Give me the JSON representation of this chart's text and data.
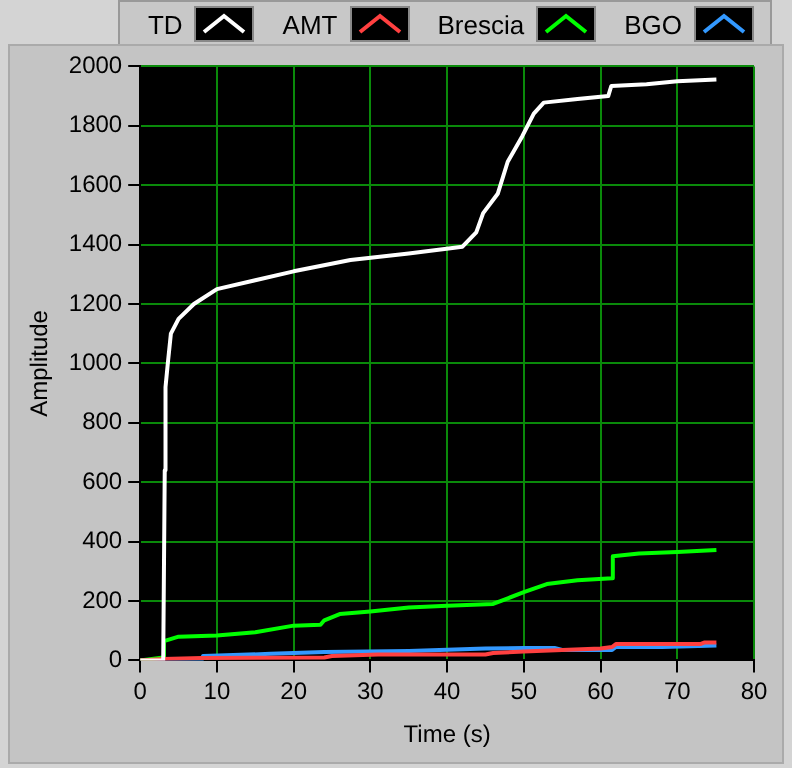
{
  "chart_data": {
    "type": "line",
    "xlabel": "Time (s)",
    "ylabel": "Amplitude",
    "xlim": [
      0,
      80
    ],
    "xticks": [
      0,
      10,
      20,
      30,
      40,
      50,
      60,
      70,
      80
    ],
    "ylim": [
      0,
      2000
    ],
    "yticks": [
      0,
      200,
      400,
      600,
      800,
      1000,
      1200,
      1400,
      1600,
      1800,
      2000
    ],
    "grid": true,
    "legend": "top right",
    "marker": "none",
    "line_style": "solid",
    "series": [
      {
        "name": "TD",
        "color": "#ffffff",
        "x": [
          0,
          3,
          3.2,
          3.3,
          3.6,
          4,
          5,
          7,
          10,
          15,
          20,
          27.4,
          35,
          42,
          43.8,
          44.7,
          46.6,
          47.9,
          49.8,
          51.3,
          52.6,
          57,
          61,
          61.4,
          66,
          70,
          75.1
        ],
        "values": [
          0,
          0,
          640,
          920,
          1000,
          1100,
          1150,
          1200,
          1250,
          1280,
          1310,
          1348,
          1370,
          1393,
          1441,
          1506,
          1571,
          1679,
          1765,
          1841,
          1878,
          1890,
          1900,
          1934,
          1940,
          1950,
          1956
        ]
      },
      {
        "name": "AMT",
        "color": "#ff4040",
        "x": [
          0,
          3,
          8,
          24,
          25,
          31,
          45,
          46,
          50,
          55,
          60,
          61.5,
          62,
          70,
          73,
          73.5,
          75.1
        ],
        "values": [
          0,
          5,
          8,
          10,
          15,
          20,
          20,
          25,
          30,
          35,
          40,
          45,
          55,
          55,
          55,
          60,
          60
        ]
      },
      {
        "name": "Brescia",
        "color": "#00ff00",
        "x": [
          0,
          3,
          3.1,
          5,
          10,
          15,
          20,
          23.5,
          24,
          26,
          30,
          35,
          40,
          46,
          48,
          50,
          53,
          57,
          61.5,
          61.6,
          65,
          70,
          75.1
        ],
        "values": [
          0,
          10,
          65,
          80,
          84,
          95,
          117,
          120,
          135,
          156,
          165,
          178,
          184,
          190,
          210,
          230,
          257,
          270,
          277,
          351,
          360,
          365,
          372
        ]
      },
      {
        "name": "BGO",
        "color": "#3399ff",
        "x": [
          0,
          8,
          8.2,
          17,
          24,
          35,
          45,
          50,
          54,
          55,
          61.5,
          62,
          68,
          75.1
        ],
        "values": [
          0,
          0,
          15,
          22,
          28,
          32,
          40,
          42,
          42,
          35,
          35,
          45,
          45,
          50
        ]
      }
    ]
  }
}
